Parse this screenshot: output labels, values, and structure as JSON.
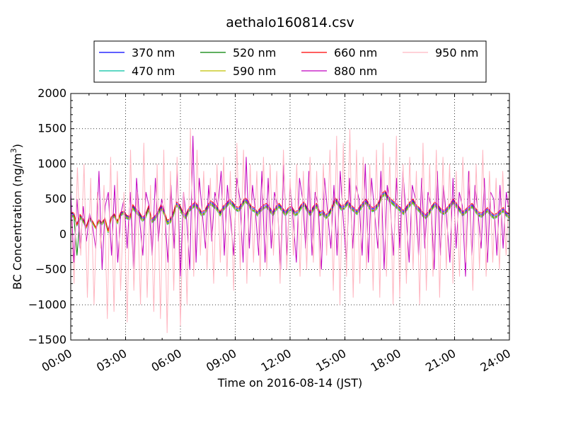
{
  "chart_data": {
    "type": "line",
    "title": "aethalo160814.csv",
    "xlabel": "Time on 2016-08-14 (JST)",
    "ylabel": "BC Concentration (ng/m",
    "ylabel_sup": "3",
    "ylabel_close": ")",
    "xlim": [
      "00:00",
      "24:00"
    ],
    "ylim": [
      -1500,
      2000
    ],
    "x_ticks": [
      "00:00",
      "03:00",
      "06:00",
      "09:00",
      "12:00",
      "15:00",
      "18:00",
      "21:00",
      "24:00"
    ],
    "y_ticks": [
      "2000",
      "1500",
      "1000",
      "500",
      "0",
      "−500",
      "−1000",
      "−1500"
    ],
    "y_tick_values": [
      2000,
      1500,
      1000,
      500,
      0,
      -500,
      -1000,
      -1500
    ],
    "grid": true,
    "legend": "top-center, outside plot, 4 columns",
    "series": [
      {
        "name": "370 nm",
        "color": "#0000ff",
        "values": [
          300,
          280,
          150,
          260,
          200,
          120,
          240,
          180,
          100,
          200,
          160,
          220,
          60,
          240,
          280,
          180,
          300,
          320,
          260,
          240,
          400,
          340,
          300,
          220,
          260,
          380,
          200,
          240,
          300,
          400,
          320,
          180,
          200,
          300,
          440,
          400,
          300,
          260,
          360,
          400,
          440,
          380,
          300,
          320,
          400,
          460,
          420,
          380,
          300,
          380,
          420,
          480,
          440,
          380,
          360,
          420,
          500,
          460,
          380,
          360,
          300,
          360,
          400,
          420,
          360,
          300,
          380,
          420,
          360,
          300,
          360,
          380,
          300,
          320,
          400,
          440,
          360,
          300,
          380,
          420,
          300,
          320,
          260,
          300,
          380,
          500,
          440,
          380,
          400,
          460,
          400,
          360,
          320,
          380,
          440,
          480,
          400,
          360,
          380,
          440,
          560,
          600,
          520,
          480,
          440,
          400,
          360,
          320,
          380,
          440,
          480,
          400,
          360,
          300,
          260,
          300,
          380,
          440,
          400,
          340,
          320,
          360,
          420,
          480,
          420,
          360,
          300,
          340,
          380,
          420,
          360,
          300,
          280,
          320,
          360,
          300,
          260,
          280,
          320,
          360,
          300,
          260
        ]
      },
      {
        "name": "470 nm",
        "color": "#00c0a0",
        "values": [
          260,
          240,
          120,
          230,
          170,
          90,
          210,
          150,
          80,
          170,
          130,
          190,
          20,
          210,
          250,
          150,
          260,
          290,
          220,
          210,
          360,
          300,
          260,
          180,
          220,
          340,
          160,
          200,
          260,
          360,
          280,
          140,
          160,
          260,
          400,
          360,
          260,
          220,
          320,
          360,
          400,
          340,
          260,
          280,
          360,
          420,
          380,
          340,
          260,
          340,
          380,
          440,
          400,
          340,
          320,
          380,
          460,
          420,
          340,
          320,
          260,
          320,
          360,
          380,
          320,
          260,
          340,
          380,
          320,
          260,
          320,
          340,
          260,
          280,
          360,
          400,
          320,
          260,
          340,
          380,
          260,
          280,
          220,
          260,
          340,
          460,
          400,
          340,
          360,
          420,
          360,
          320,
          280,
          340,
          400,
          440,
          360,
          320,
          340,
          400,
          520,
          560,
          480,
          440,
          400,
          360,
          320,
          280,
          340,
          400,
          440,
          360,
          320,
          260,
          220,
          260,
          340,
          400,
          360,
          300,
          280,
          320,
          380,
          440,
          380,
          320,
          260,
          300,
          340,
          380,
          320,
          260,
          240,
          280,
          320,
          260,
          220,
          240,
          280,
          320,
          260,
          220
        ]
      },
      {
        "name": "520 nm",
        "color": "#008000",
        "values": [
          280,
          260,
          -300,
          250,
          190,
          100,
          230,
          170,
          90,
          190,
          150,
          210,
          40,
          230,
          270,
          170,
          280,
          310,
          240,
          230,
          380,
          320,
          280,
          200,
          240,
          360,
          180,
          220,
          280,
          380,
          300,
          160,
          180,
          280,
          420,
          380,
          280,
          240,
          340,
          380,
          420,
          360,
          280,
          300,
          380,
          440,
          400,
          360,
          280,
          360,
          400,
          460,
          420,
          360,
          340,
          400,
          480,
          440,
          360,
          340,
          280,
          340,
          380,
          400,
          340,
          280,
          360,
          400,
          340,
          280,
          340,
          360,
          280,
          300,
          380,
          420,
          340,
          280,
          360,
          400,
          280,
          300,
          240,
          280,
          360,
          480,
          420,
          360,
          380,
          440,
          380,
          340,
          300,
          360,
          420,
          460,
          380,
          340,
          360,
          420,
          540,
          580,
          500,
          460,
          420,
          380,
          340,
          300,
          360,
          420,
          460,
          380,
          340,
          280,
          240,
          280,
          360,
          420,
          380,
          320,
          300,
          340,
          400,
          460,
          400,
          340,
          280,
          320,
          360,
          400,
          340,
          280,
          260,
          300,
          340,
          280,
          240,
          260,
          300,
          340,
          280,
          240
        ]
      },
      {
        "name": "590 nm",
        "color": "#c0c000",
        "values": [
          270,
          250,
          130,
          240,
          180,
          95,
          220,
          160,
          85,
          180,
          140,
          200,
          30,
          220,
          260,
          160,
          270,
          300,
          230,
          220,
          370,
          310,
          270,
          190,
          230,
          350,
          170,
          210,
          270,
          370,
          290,
          150,
          170,
          270,
          410,
          370,
          270,
          230,
          330,
          370,
          410,
          350,
          270,
          290,
          370,
          430,
          390,
          350,
          270,
          350,
          390,
          450,
          410,
          350,
          330,
          390,
          470,
          430,
          350,
          330,
          270,
          330,
          370,
          390,
          330,
          270,
          350,
          390,
          330,
          270,
          330,
          350,
          270,
          290,
          370,
          410,
          330,
          270,
          350,
          390,
          270,
          290,
          230,
          270,
          350,
          470,
          410,
          350,
          370,
          430,
          370,
          330,
          290,
          350,
          410,
          450,
          370,
          330,
          350,
          410,
          530,
          570,
          490,
          450,
          410,
          370,
          330,
          290,
          350,
          410,
          450,
          370,
          330,
          270,
          230,
          270,
          350,
          410,
          370,
          310,
          290,
          330,
          390,
          450,
          390,
          330,
          270,
          310,
          350,
          390,
          330,
          270,
          250,
          290,
          330,
          270,
          230,
          250,
          290,
          330,
          270,
          230
        ]
      },
      {
        "name": "660 nm",
        "color": "#ff0000",
        "values": [
          320,
          300,
          140,
          280,
          220,
          110,
          250,
          190,
          100,
          210,
          170,
          230,
          50,
          250,
          290,
          190,
          310,
          330,
          270,
          250,
          420,
          360,
          320,
          240,
          280,
          400,
          220,
          260,
          320,
          420,
          340,
          200,
          220,
          320,
          460,
          420,
          320,
          280,
          380,
          420,
          460,
          400,
          320,
          340,
          420,
          480,
          440,
          400,
          320,
          400,
          440,
          500,
          460,
          400,
          380,
          440,
          520,
          480,
          400,
          380,
          320,
          380,
          420,
          440,
          380,
          320,
          400,
          440,
          380,
          320,
          380,
          400,
          320,
          340,
          420,
          460,
          380,
          320,
          400,
          440,
          320,
          340,
          280,
          320,
          400,
          520,
          460,
          400,
          420,
          480,
          420,
          380,
          340,
          400,
          460,
          500,
          420,
          380,
          400,
          460,
          580,
          620,
          540,
          500,
          460,
          420,
          380,
          340,
          400,
          460,
          500,
          420,
          380,
          320,
          280,
          320,
          400,
          460,
          420,
          360,
          340,
          380,
          440,
          500,
          440,
          380,
          320,
          360,
          400,
          440,
          380,
          320,
          300,
          340,
          380,
          320,
          280,
          300,
          340,
          380,
          320,
          280
        ]
      },
      {
        "name": "880 nm",
        "color": "#c000c0",
        "values": [
          600,
          -400,
          500,
          -200,
          400,
          -100,
          300,
          100,
          -200,
          900,
          -500,
          400,
          600,
          -300,
          700,
          -400,
          300,
          500,
          -200,
          600,
          -500,
          800,
          200,
          -300,
          600,
          400,
          -300,
          800,
          -100,
          500,
          300,
          -400,
          700,
          -200,
          900,
          -600,
          600,
          200,
          -500,
          1400,
          -400,
          800,
          300,
          -200,
          700,
          -100,
          600,
          400,
          900,
          -300,
          700,
          200,
          -300,
          800,
          500,
          -400,
          1100,
          -200,
          700,
          300,
          -300,
          900,
          -400,
          800,
          -200,
          600,
          400,
          -500,
          1000,
          -300,
          700,
          200,
          -400,
          800,
          500,
          -200,
          900,
          -300,
          600,
          400,
          -500,
          800,
          300,
          -200,
          700,
          -300,
          900,
          200,
          -400,
          800,
          -200,
          700,
          500,
          -300,
          1000,
          -400,
          800,
          300,
          -200,
          900,
          -500,
          700,
          400,
          -300,
          800,
          -200,
          900,
          300,
          -400,
          700,
          500,
          -300,
          800,
          -200,
          600,
          400,
          -500,
          900,
          -300,
          700,
          200,
          -400,
          800,
          -200,
          600,
          400,
          -600,
          900,
          -300,
          700,
          300,
          -200,
          800,
          -400,
          600,
          500,
          -300,
          700,
          -200,
          600,
          300
        ]
      },
      {
        "name": "950 nm",
        "color": "#ffb6c1",
        "values": [
          400,
          -700,
          950,
          -300,
          1000,
          -900,
          800,
          -1000,
          600,
          -200,
          700,
          -1200,
          1100,
          -1100,
          900,
          -800,
          600,
          -1250,
          1200,
          -800,
          600,
          -1000,
          1300,
          -900,
          700,
          -1100,
          1000,
          -1200,
          1200,
          -1400,
          900,
          -800,
          1100,
          -1300,
          600,
          -1000,
          1500,
          -600,
          1200,
          -300,
          900,
          -500,
          800,
          -700,
          1000,
          -400,
          1100,
          -600,
          900,
          -800,
          1300,
          -500,
          1200,
          -700,
          1000,
          -400,
          900,
          -600,
          1100,
          -500,
          1000,
          -300,
          900,
          -700,
          1200,
          -500,
          800,
          -300,
          1000,
          -600,
          900,
          -500,
          1100,
          -400,
          900,
          -600,
          1000,
          -300,
          1200,
          -800,
          1400,
          -1000,
          1300,
          -600,
          1500,
          -900,
          1200,
          -700,
          1100,
          -500,
          1000,
          -800,
          1200,
          -900,
          1300,
          -600,
          1100,
          -1000,
          1400,
          -900,
          1000,
          -700,
          1100,
          -500,
          900,
          -1000,
          1300,
          -800,
          1000,
          -600,
          1200,
          -900,
          1100,
          -500,
          1000,
          -700,
          900,
          -600,
          1100,
          -400,
          900,
          -800,
          1000,
          -500,
          1200,
          -600,
          900,
          -400,
          800,
          -500,
          900,
          -300,
          700
        ]
      }
    ]
  }
}
